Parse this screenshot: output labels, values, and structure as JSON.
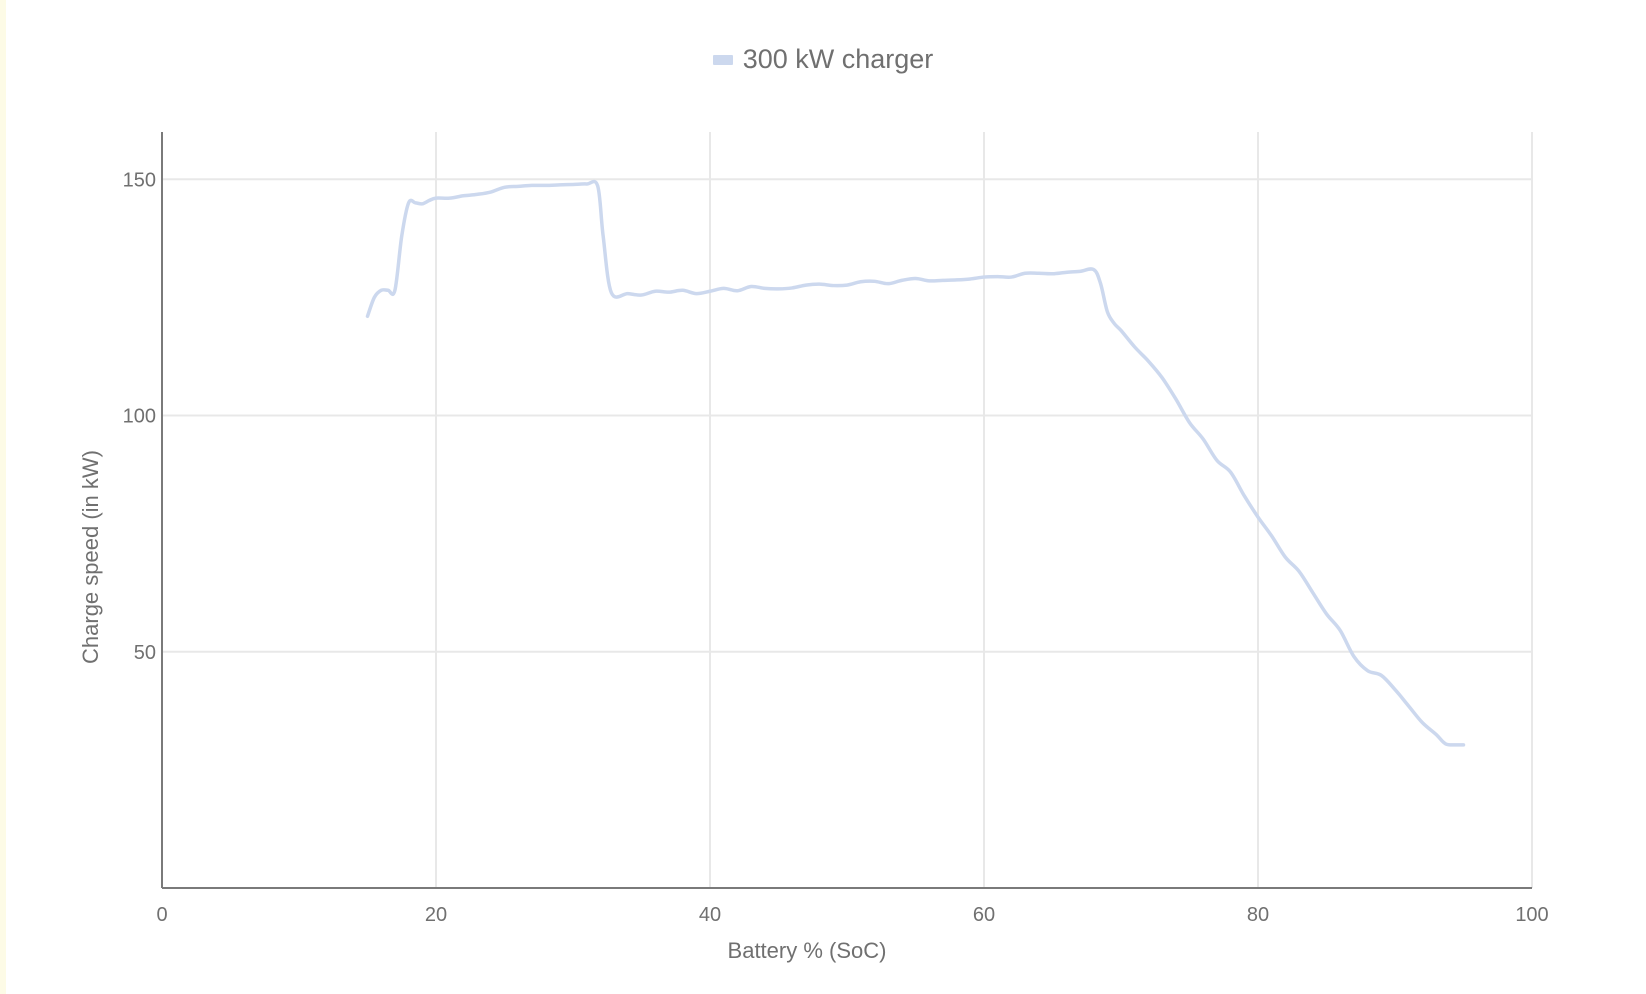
{
  "chart_data": {
    "type": "line",
    "title": "",
    "xlabel": "Battery % (SoC)",
    "ylabel": "Charge speed (in kW)",
    "xlim": [
      0,
      100
    ],
    "ylim": [
      0,
      160
    ],
    "x_ticks": [
      0,
      20,
      40,
      60,
      80,
      100
    ],
    "y_ticks": [
      50,
      100,
      150
    ],
    "grid": true,
    "legend_position": "top-center",
    "series": [
      {
        "name": "300 kW charger",
        "color": "#ccd8ee",
        "points": [
          [
            15,
            121
          ],
          [
            15.5,
            125
          ],
          [
            16,
            126.5
          ],
          [
            16.5,
            126.5
          ],
          [
            17,
            126.5
          ],
          [
            17.5,
            138
          ],
          [
            18,
            145
          ],
          [
            18.5,
            145
          ],
          [
            19,
            144.8
          ],
          [
            19.5,
            145.5
          ],
          [
            20,
            146
          ],
          [
            21,
            146
          ],
          [
            22,
            146.5
          ],
          [
            23,
            146.8
          ],
          [
            24,
            147.3
          ],
          [
            25,
            148.3
          ],
          [
            26,
            148.5
          ],
          [
            27,
            148.7
          ],
          [
            28,
            148.7
          ],
          [
            29,
            148.8
          ],
          [
            30,
            148.9
          ],
          [
            31,
            149
          ],
          [
            31.8,
            148.6
          ],
          [
            32.2,
            138
          ],
          [
            32.8,
            126
          ],
          [
            34,
            125.8
          ],
          [
            35,
            125.5
          ],
          [
            36,
            126.3
          ],
          [
            37,
            126.1
          ],
          [
            38,
            126.5
          ],
          [
            39,
            125.8
          ],
          [
            40,
            126.3
          ],
          [
            41,
            126.9
          ],
          [
            42,
            126.4
          ],
          [
            43,
            127.3
          ],
          [
            44,
            126.9
          ],
          [
            45,
            126.8
          ],
          [
            46,
            127
          ],
          [
            47,
            127.6
          ],
          [
            48,
            127.8
          ],
          [
            49,
            127.5
          ],
          [
            50,
            127.6
          ],
          [
            51,
            128.3
          ],
          [
            52,
            128.4
          ],
          [
            53,
            127.9
          ],
          [
            54,
            128.6
          ],
          [
            55,
            129
          ],
          [
            56,
            128.5
          ],
          [
            57,
            128.6
          ],
          [
            58,
            128.7
          ],
          [
            59,
            128.9
          ],
          [
            60,
            129.3
          ],
          [
            61,
            129.4
          ],
          [
            62,
            129.3
          ],
          [
            63,
            130.1
          ],
          [
            64,
            130.1
          ],
          [
            65,
            130
          ],
          [
            66,
            130.3
          ],
          [
            67,
            130.5
          ],
          [
            68,
            130.9
          ],
          [
            68.5,
            128
          ],
          [
            69,
            122
          ],
          [
            69.5,
            119.5
          ],
          [
            70,
            118
          ],
          [
            71,
            114.5
          ],
          [
            72,
            111.5
          ],
          [
            73,
            108
          ],
          [
            74,
            103.5
          ],
          [
            75,
            98.5
          ],
          [
            76,
            95
          ],
          [
            77,
            90.5
          ],
          [
            78,
            88
          ],
          [
            79,
            83
          ],
          [
            80,
            78.5
          ],
          [
            81,
            74.5
          ],
          [
            82,
            70
          ],
          [
            83,
            67
          ],
          [
            84,
            62.5
          ],
          [
            85,
            58
          ],
          [
            86,
            54.5
          ],
          [
            87,
            49
          ],
          [
            88,
            46
          ],
          [
            89,
            45
          ],
          [
            90,
            42
          ],
          [
            91,
            38.5
          ],
          [
            92,
            35
          ],
          [
            93,
            32.5
          ],
          [
            93.7,
            30.5
          ],
          [
            94.5,
            30.3
          ],
          [
            95,
            30.3
          ]
        ]
      }
    ]
  }
}
